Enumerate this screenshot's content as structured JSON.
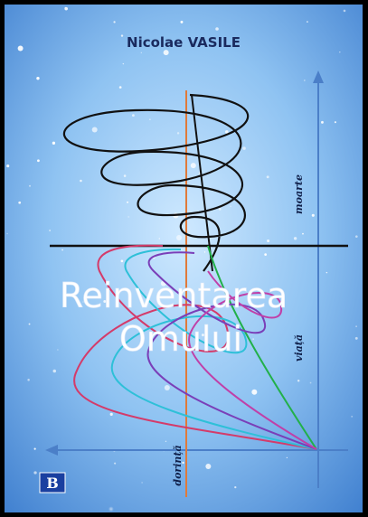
{
  "author": "Nicolae VASILE",
  "title": {
    "line1": "Reinventarea",
    "line2": "Omului"
  },
  "axis_labels": {
    "top": "moarte",
    "middle": "viață",
    "bottom": "dorință"
  },
  "publisher_logo": "B"
}
